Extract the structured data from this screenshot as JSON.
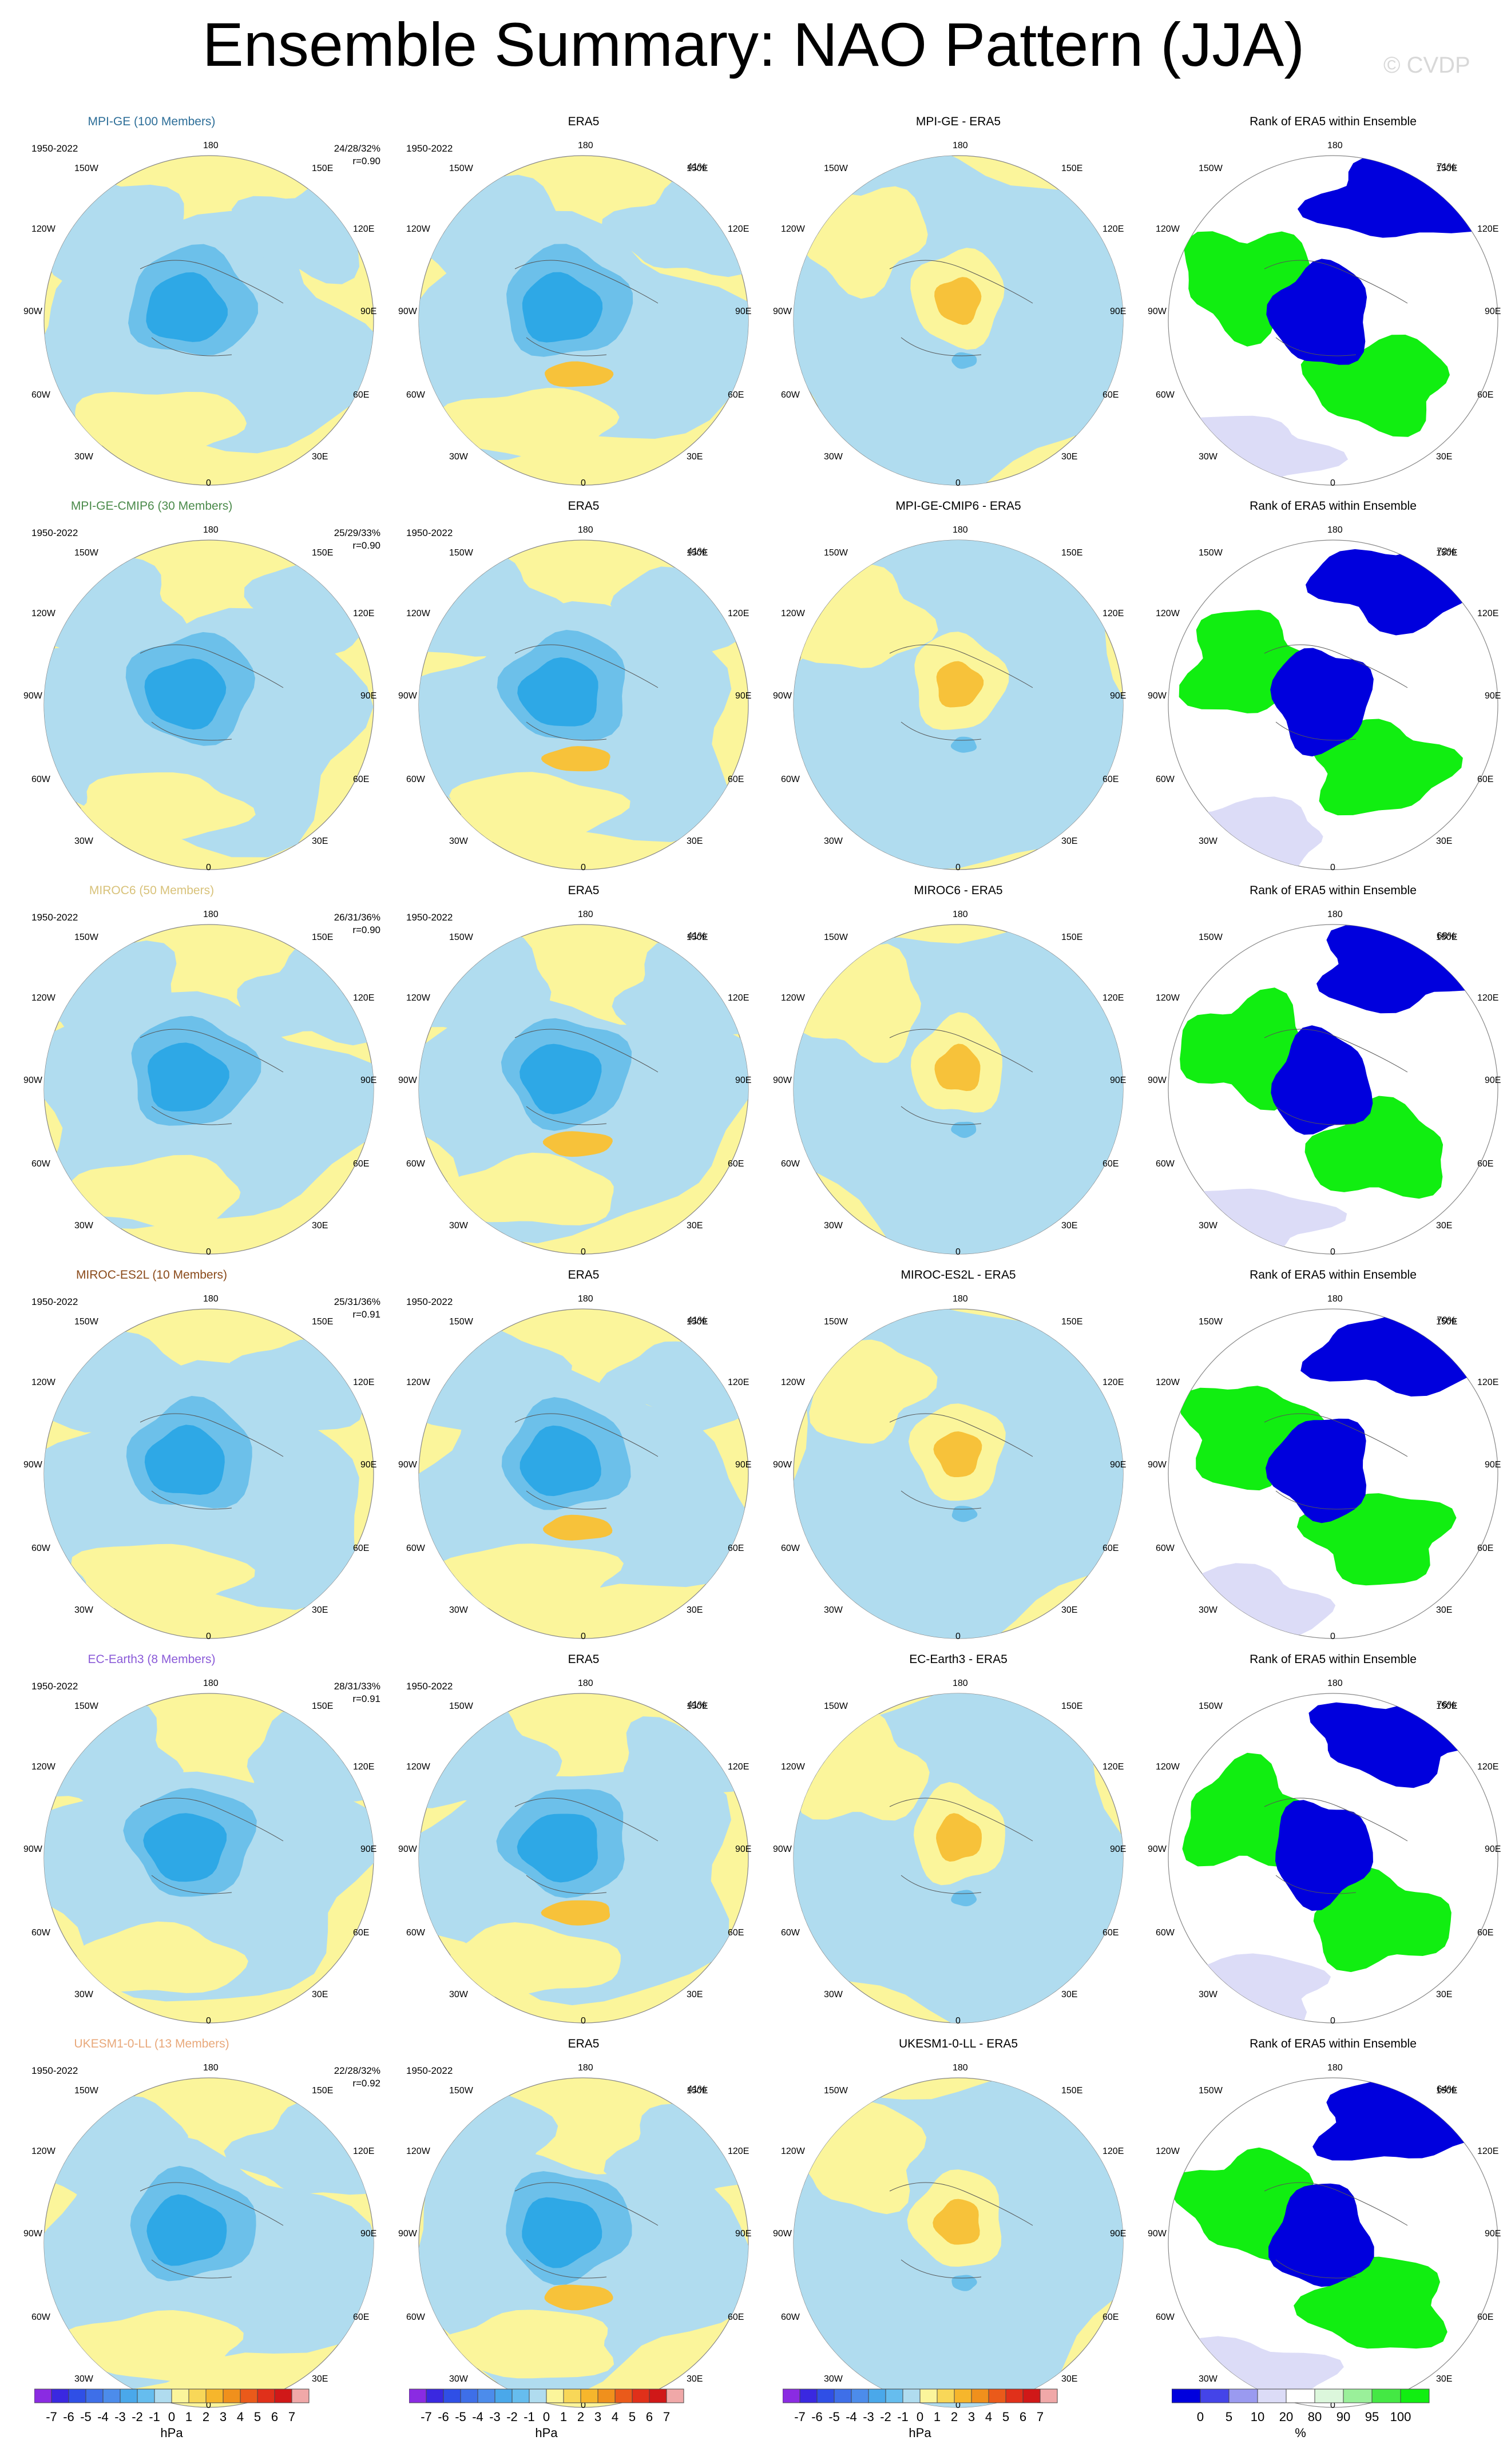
{
  "title": "Ensemble Summary: NAO Pattern (JJA)",
  "watermark": "© CVDP",
  "map_labels": {
    "lat_top": "180",
    "lat_bottom": "0",
    "left": [
      "150W",
      "120W",
      "90W",
      "60W",
      "30W"
    ],
    "right": [
      "150E",
      "120E",
      "90E",
      "60E",
      "30E"
    ]
  },
  "colors": {
    "pos_light": "#fbf59b",
    "neg_light": "#b0dcef",
    "neg_mid": "#6cc0ea",
    "neg_strong": "#2ea8e6",
    "pos_mid": "#f7c23a",
    "rank_blue": "#0000dd",
    "rank_green": "#11ee11",
    "rank_pale": "#dcdcf7"
  },
  "rows": [
    {
      "model": "MPI-GE (100 Members)",
      "model_color": "#2d6e98",
      "years": "1950-2022",
      "stat": "24/28/32%",
      "r": "r=0.90",
      "era_pct": "41%",
      "diff_title": "MPI-GE - ERA5",
      "rank_title": "Rank of ERA5 within Ensemble",
      "rank_pct": "71%"
    },
    {
      "model": "MPI-GE-CMIP6 (30 Members)",
      "model_color": "#4a8a4a",
      "years": "1950-2022",
      "stat": "25/29/33%",
      "r": "r=0.90",
      "era_pct": "41%",
      "diff_title": "MPI-GE-CMIP6 - ERA5",
      "rank_title": "Rank of ERA5 within Ensemble",
      "rank_pct": "72%"
    },
    {
      "model": "MIROC6 (50 Members)",
      "model_color": "#d8c27a",
      "years": "1950-2022",
      "stat": "26/31/36%",
      "r": "r=0.90",
      "era_pct": "41%",
      "diff_title": "MIROC6 - ERA5",
      "rank_title": "Rank of ERA5 within Ensemble",
      "rank_pct": "68%"
    },
    {
      "model": "MIROC-ES2L (10 Members)",
      "model_color": "#8a4a1a",
      "years": "1950-2022",
      "stat": "25/31/36%",
      "r": "r=0.91",
      "era_pct": "41%",
      "diff_title": "MIROC-ES2L - ERA5",
      "rank_title": "Rank of ERA5 within Ensemble",
      "rank_pct": "70%"
    },
    {
      "model": "EC-Earth3 (8 Members)",
      "model_color": "#8a5ad8",
      "years": "1950-2022",
      "stat": "28/31/33%",
      "r": "r=0.91",
      "era_pct": "41%",
      "diff_title": "EC-Earth3 - ERA5",
      "rank_title": "Rank of ERA5 within Ensemble",
      "rank_pct": "76%"
    },
    {
      "model": "UKESM1-0-LL (13 Members)",
      "model_color": "#e8a87a",
      "years": "1950-2022",
      "stat": "22/28/32%",
      "r": "r=0.92",
      "era_pct": "41%",
      "diff_title": "UKESM1-0-LL - ERA5",
      "rank_title": "Rank of ERA5 within Ensemble",
      "rank_pct": "64%"
    }
  ],
  "era_title": "ERA5",
  "colorbar_hpa": {
    "ticks": [
      "-7",
      "-6",
      "-5",
      "-4",
      "-3",
      "-2",
      "-1",
      "0",
      "1",
      "2",
      "3",
      "4",
      "5",
      "6",
      "7"
    ],
    "unit": "hPa",
    "colors": [
      "#8a2be2",
      "#3a28e0",
      "#2f4fe6",
      "#3e6fe8",
      "#4c8ceb",
      "#4aa8ea",
      "#66bdee",
      "#b0dcef",
      "#fbf59b",
      "#f8d758",
      "#f6b62c",
      "#f0901c",
      "#ea5a1a",
      "#e0301a",
      "#d01818",
      "#f0a8a8"
    ]
  },
  "colorbar_rank": {
    "ticks": [
      "0",
      "5",
      "10",
      "20",
      "80",
      "90",
      "95",
      "100"
    ],
    "unit": "%",
    "colors": [
      "#0000dd",
      "#4444e8",
      "#9a9af0",
      "#dcdcf7",
      "#ffffff",
      "#dcf7dc",
      "#9af09a",
      "#44e844",
      "#11ee11"
    ]
  }
}
